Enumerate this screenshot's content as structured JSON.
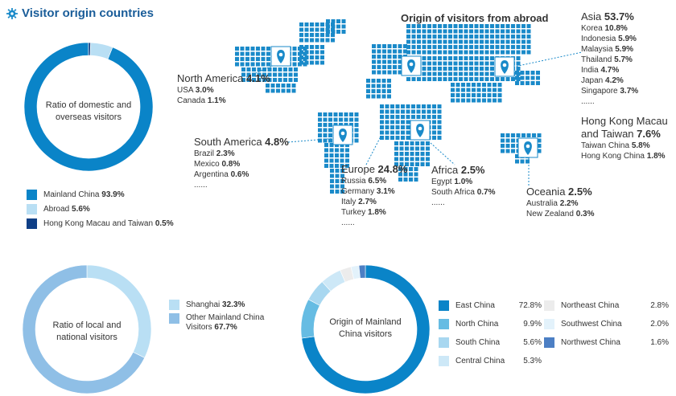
{
  "title": "Visitor origin countries",
  "colors": {
    "primary": "#0a84c8",
    "light": "#b9dff4",
    "dark": "#0f3f86",
    "mid": "#8fbfe6"
  },
  "map": {
    "title": "Origin of visitors from abroad",
    "regions": {
      "asia": {
        "name": "Asia",
        "value": "53.7%",
        "rows": [
          [
            "Korea",
            "10.8%"
          ],
          [
            "Indonesia",
            "5.9%"
          ],
          [
            "Malaysia",
            "5.9%"
          ],
          [
            "Thailand",
            "5.7%"
          ],
          [
            "India",
            "4.7%"
          ],
          [
            "Japan",
            "4.2%"
          ],
          [
            "Singapore",
            "3.7%"
          ]
        ],
        "more": "......"
      },
      "hkmt": {
        "name_line1": "Hong Kong Macau",
        "name_line2": "and Taiwan",
        "value": "7.6%",
        "rows": [
          [
            "Taiwan China",
            "5.8%"
          ],
          [
            "Hong Kong China",
            "1.8%"
          ]
        ]
      },
      "north_america": {
        "name": "North America",
        "value": "4.1%",
        "rows": [
          [
            "USA",
            "3.0%"
          ],
          [
            "Canada",
            "1.1%"
          ]
        ]
      },
      "south_america": {
        "name": "South America",
        "value": "4.8%",
        "rows": [
          [
            "Brazil",
            "2.3%"
          ],
          [
            "Mexico",
            "0.8%"
          ],
          [
            "Argentina",
            "0.6%"
          ]
        ],
        "more": "......"
      },
      "europe": {
        "name": "Europe",
        "value": "24.8%",
        "rows": [
          [
            "Russia",
            "6.5%"
          ],
          [
            "Germany",
            "3.1%"
          ],
          [
            "Italy",
            "2.7%"
          ],
          [
            "Turkey",
            "1.8%"
          ]
        ],
        "more": "......"
      },
      "africa": {
        "name": "Africa",
        "value": "2.5%",
        "rows": [
          [
            "Egypt",
            "1.0%"
          ],
          [
            "South Africa",
            "0.7%"
          ]
        ],
        "more": "......"
      },
      "oceania": {
        "name": "Oceania",
        "value": "2.5%",
        "rows": [
          [
            "Australia",
            "2.2%"
          ],
          [
            "New Zealand",
            "0.3%"
          ]
        ]
      }
    }
  },
  "chart_data": [
    {
      "type": "pie",
      "title": "Ratio of domestic and overseas visitors",
      "categories": [
        "Mainland China",
        "Abroad",
        "Hong Kong Macau and Taiwan"
      ],
      "values": [
        93.9,
        5.6,
        0.5
      ],
      "colors": [
        "#0a84c8",
        "#b9dff4",
        "#0f3f86"
      ],
      "labels": [
        "93.9%",
        "5.6%",
        "0.5%"
      ]
    },
    {
      "type": "pie",
      "title": "Ratio of local and national visitors",
      "categories": [
        "Shanghai",
        "Other Mainland China Visitors"
      ],
      "values": [
        32.3,
        67.7
      ],
      "colors": [
        "#b9dff4",
        "#8fbfe6"
      ],
      "labels": [
        "32.3%",
        "67.7%"
      ]
    },
    {
      "type": "pie",
      "title": "Origin of Mainland China visitors",
      "categories": [
        "East China",
        "North China",
        "South China",
        "Central China",
        "Northeast China",
        "Southwest China",
        "Northwest China"
      ],
      "values": [
        72.8,
        9.9,
        5.6,
        5.3,
        2.8,
        2.0,
        1.6
      ],
      "colors": [
        "#0a84c8",
        "#66bce3",
        "#a8d7f0",
        "#cde8f7",
        "#ececec",
        "#e3f2fb",
        "#4c7fc4"
      ],
      "labels": [
        "72.8%",
        "9.9%",
        "5.6%",
        "5.3%",
        "2.8%",
        "2.0%",
        "1.6%"
      ]
    }
  ],
  "legends": {
    "domestic": [
      {
        "label": "Mainland China",
        "value": "93.9%"
      },
      {
        "label": "Abroad",
        "value": "5.6%"
      },
      {
        "label": "Hong Kong Macau and Taiwan",
        "value": "0.5%"
      }
    ],
    "local": [
      {
        "label": "Shanghai",
        "value": "32.3%"
      },
      {
        "label_line1": "Other Mainland China",
        "label_line2": "Visitors",
        "value": "67.7%"
      }
    ],
    "mainland": [
      {
        "label": "East China",
        "value": "72.8%"
      },
      {
        "label": "North China",
        "value": "9.9%"
      },
      {
        "label": "South China",
        "value": "5.6%"
      },
      {
        "label": "Central China",
        "value": "5.3%"
      },
      {
        "label": "Northeast China",
        "value": "2.8%"
      },
      {
        "label": "Southwest China",
        "value": "2.0%"
      },
      {
        "label": "Northwest China",
        "value": "1.6%"
      }
    ]
  },
  "donut_labels": {
    "domestic_line1": "Ratio of domestic and",
    "domestic_line2": "overseas visitors",
    "local_line1": "Ratio of local and",
    "local_line2": "national visitors",
    "mainland_line1": "Origin of Mainland",
    "mainland_line2": "China visitors"
  }
}
